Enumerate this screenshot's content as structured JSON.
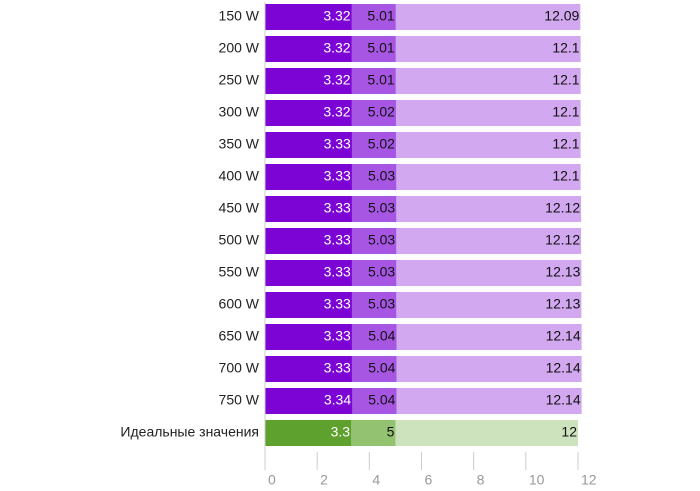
{
  "chart_data": {
    "type": "bar_overlap",
    "categories": [
      "150 W",
      "200 W",
      "250 W",
      "300 W",
      "350 W",
      "400 W",
      "450 W",
      "500 W",
      "550 W",
      "600 W",
      "650 W",
      "700 W",
      "750 W",
      "Идеальные значения"
    ],
    "series": [
      {
        "values": [
          12.09,
          12.1,
          12.1,
          12.1,
          12.1,
          12.1,
          12.12,
          12.12,
          12.13,
          12.13,
          12.14,
          12.14,
          12.14,
          12
        ],
        "colors": [
          "#d2a9f1",
          "#d2a9f1",
          "#d2a9f1",
          "#d2a9f1",
          "#d2a9f1",
          "#d2a9f1",
          "#d2a9f1",
          "#d2a9f1",
          "#d2a9f1",
          "#d2a9f1",
          "#d2a9f1",
          "#d2a9f1",
          "#d2a9f1",
          "#cde3be"
        ]
      },
      {
        "values": [
          5.01,
          5.01,
          5.01,
          5.02,
          5.02,
          5.03,
          5.03,
          5.03,
          5.03,
          5.03,
          5.04,
          5.04,
          5.04,
          5
        ],
        "colors": [
          "#a656e3",
          "#a656e3",
          "#a656e3",
          "#a656e3",
          "#a656e3",
          "#a656e3",
          "#a656e3",
          "#a656e3",
          "#a656e3",
          "#a656e3",
          "#a656e3",
          "#a656e3",
          "#a656e3",
          "#93c271"
        ]
      },
      {
        "values": [
          3.32,
          3.32,
          3.32,
          3.32,
          3.33,
          3.33,
          3.33,
          3.33,
          3.33,
          3.33,
          3.33,
          3.33,
          3.34,
          3.3
        ],
        "colors": [
          "#7c05d6",
          "#7c05d6",
          "#7c05d6",
          "#7c05d6",
          "#7c05d6",
          "#7c05d6",
          "#7c05d6",
          "#7c05d6",
          "#7c05d6",
          "#7c05d6",
          "#7c05d6",
          "#7c05d6",
          "#7c05d6",
          "#5ea12f"
        ]
      }
    ],
    "xlim": [
      0,
      12
    ],
    "xticks": [
      0,
      2,
      4,
      6,
      8,
      10,
      12
    ]
  }
}
